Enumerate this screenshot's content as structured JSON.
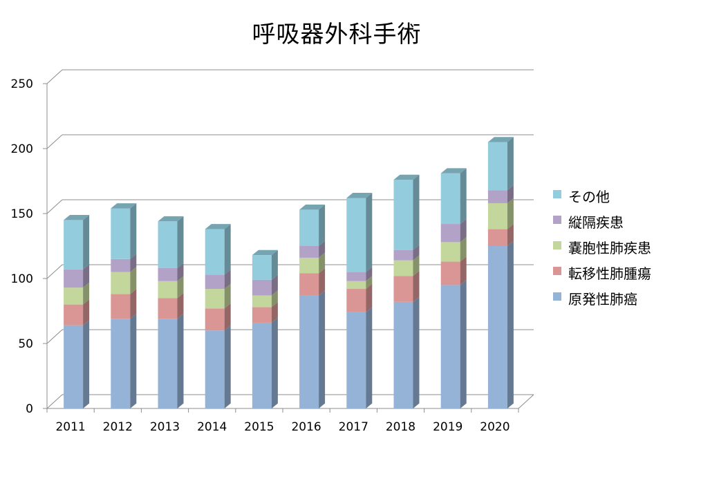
{
  "chart_data": {
    "type": "bar",
    "stacked": true,
    "style": "3d-column",
    "title": "呼吸器外科手術",
    "xlabel": "",
    "ylabel": "",
    "categories": [
      "2011",
      "2012",
      "2013",
      "2014",
      "2015",
      "2016",
      "2017",
      "2018",
      "2019",
      "2020"
    ],
    "ylim": [
      0,
      250
    ],
    "yticks": [
      "0",
      "50",
      "100",
      "150",
      "200",
      "250"
    ],
    "grid": true,
    "legend_position": "right",
    "series": [
      {
        "name": "原発性肺癌",
        "color": "#95b3d7",
        "values": [
          64,
          69,
          69,
          60,
          66,
          87,
          74,
          82,
          95,
          125
        ]
      },
      {
        "name": "転移性肺腫瘍",
        "color": "#d99694",
        "values": [
          16,
          19,
          16,
          17,
          12,
          17,
          18,
          20,
          18,
          13
        ]
      },
      {
        "name": "嚢胞性肺疾患",
        "color": "#c3d69b",
        "values": [
          13,
          17,
          13,
          15,
          9,
          12,
          6,
          12,
          15,
          20
        ]
      },
      {
        "name": "縦隔疾患",
        "color": "#b3a2c7",
        "values": [
          14,
          10,
          10,
          11,
          12,
          9,
          7,
          8,
          14,
          10
        ]
      },
      {
        "name": "その他",
        "color": "#93cddd",
        "values": [
          38,
          39,
          36,
          35,
          19,
          28,
          57,
          54,
          39,
          37
        ]
      }
    ]
  }
}
